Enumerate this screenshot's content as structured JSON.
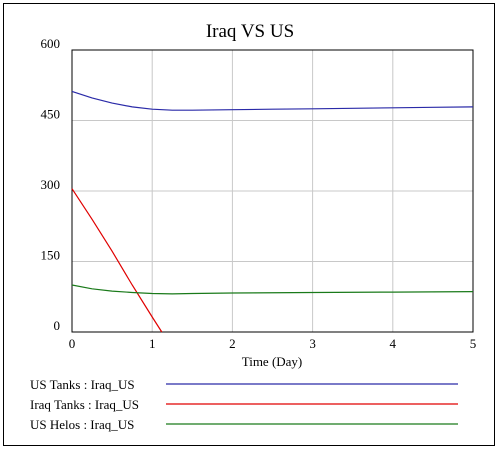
{
  "chart_data": {
    "type": "line",
    "title": "Iraq VS US",
    "xlabel": "Time (Day)",
    "ylabel": "",
    "xlim": [
      0,
      5
    ],
    "ylim": [
      0,
      600
    ],
    "xticks": [
      "0",
      "1",
      "2",
      "3",
      "4",
      "5"
    ],
    "yticks": [
      "0",
      "150",
      "300",
      "450",
      "600"
    ],
    "grid": true,
    "legend_position": "bottom-left",
    "series": [
      {
        "name": "US Tanks : Iraq_US",
        "color": "#2a2aa8",
        "x": [
          0,
          0.25,
          0.5,
          0.75,
          1.0,
          1.25,
          1.5,
          2,
          2.5,
          3,
          3.5,
          4,
          4.5,
          5
        ],
        "y": [
          512,
          498,
          487,
          479,
          474,
          472,
          472,
          473,
          474,
          475,
          476,
          477,
          478,
          479
        ]
      },
      {
        "name": "Iraq Tanks : Iraq_US",
        "color": "#e00000",
        "x": [
          0,
          0.25,
          0.5,
          0.75,
          1.0,
          1.12
        ],
        "y": [
          305,
          240,
          172,
          100,
          32,
          0
        ]
      },
      {
        "name": "US Helos : Iraq_US",
        "color": "#1a7a1a",
        "x": [
          0,
          0.25,
          0.5,
          0.75,
          1.0,
          1.25,
          1.5,
          2,
          3,
          4,
          5
        ],
        "y": [
          100,
          92,
          87,
          84,
          82,
          81,
          82,
          83,
          84,
          85,
          86
        ]
      }
    ]
  }
}
